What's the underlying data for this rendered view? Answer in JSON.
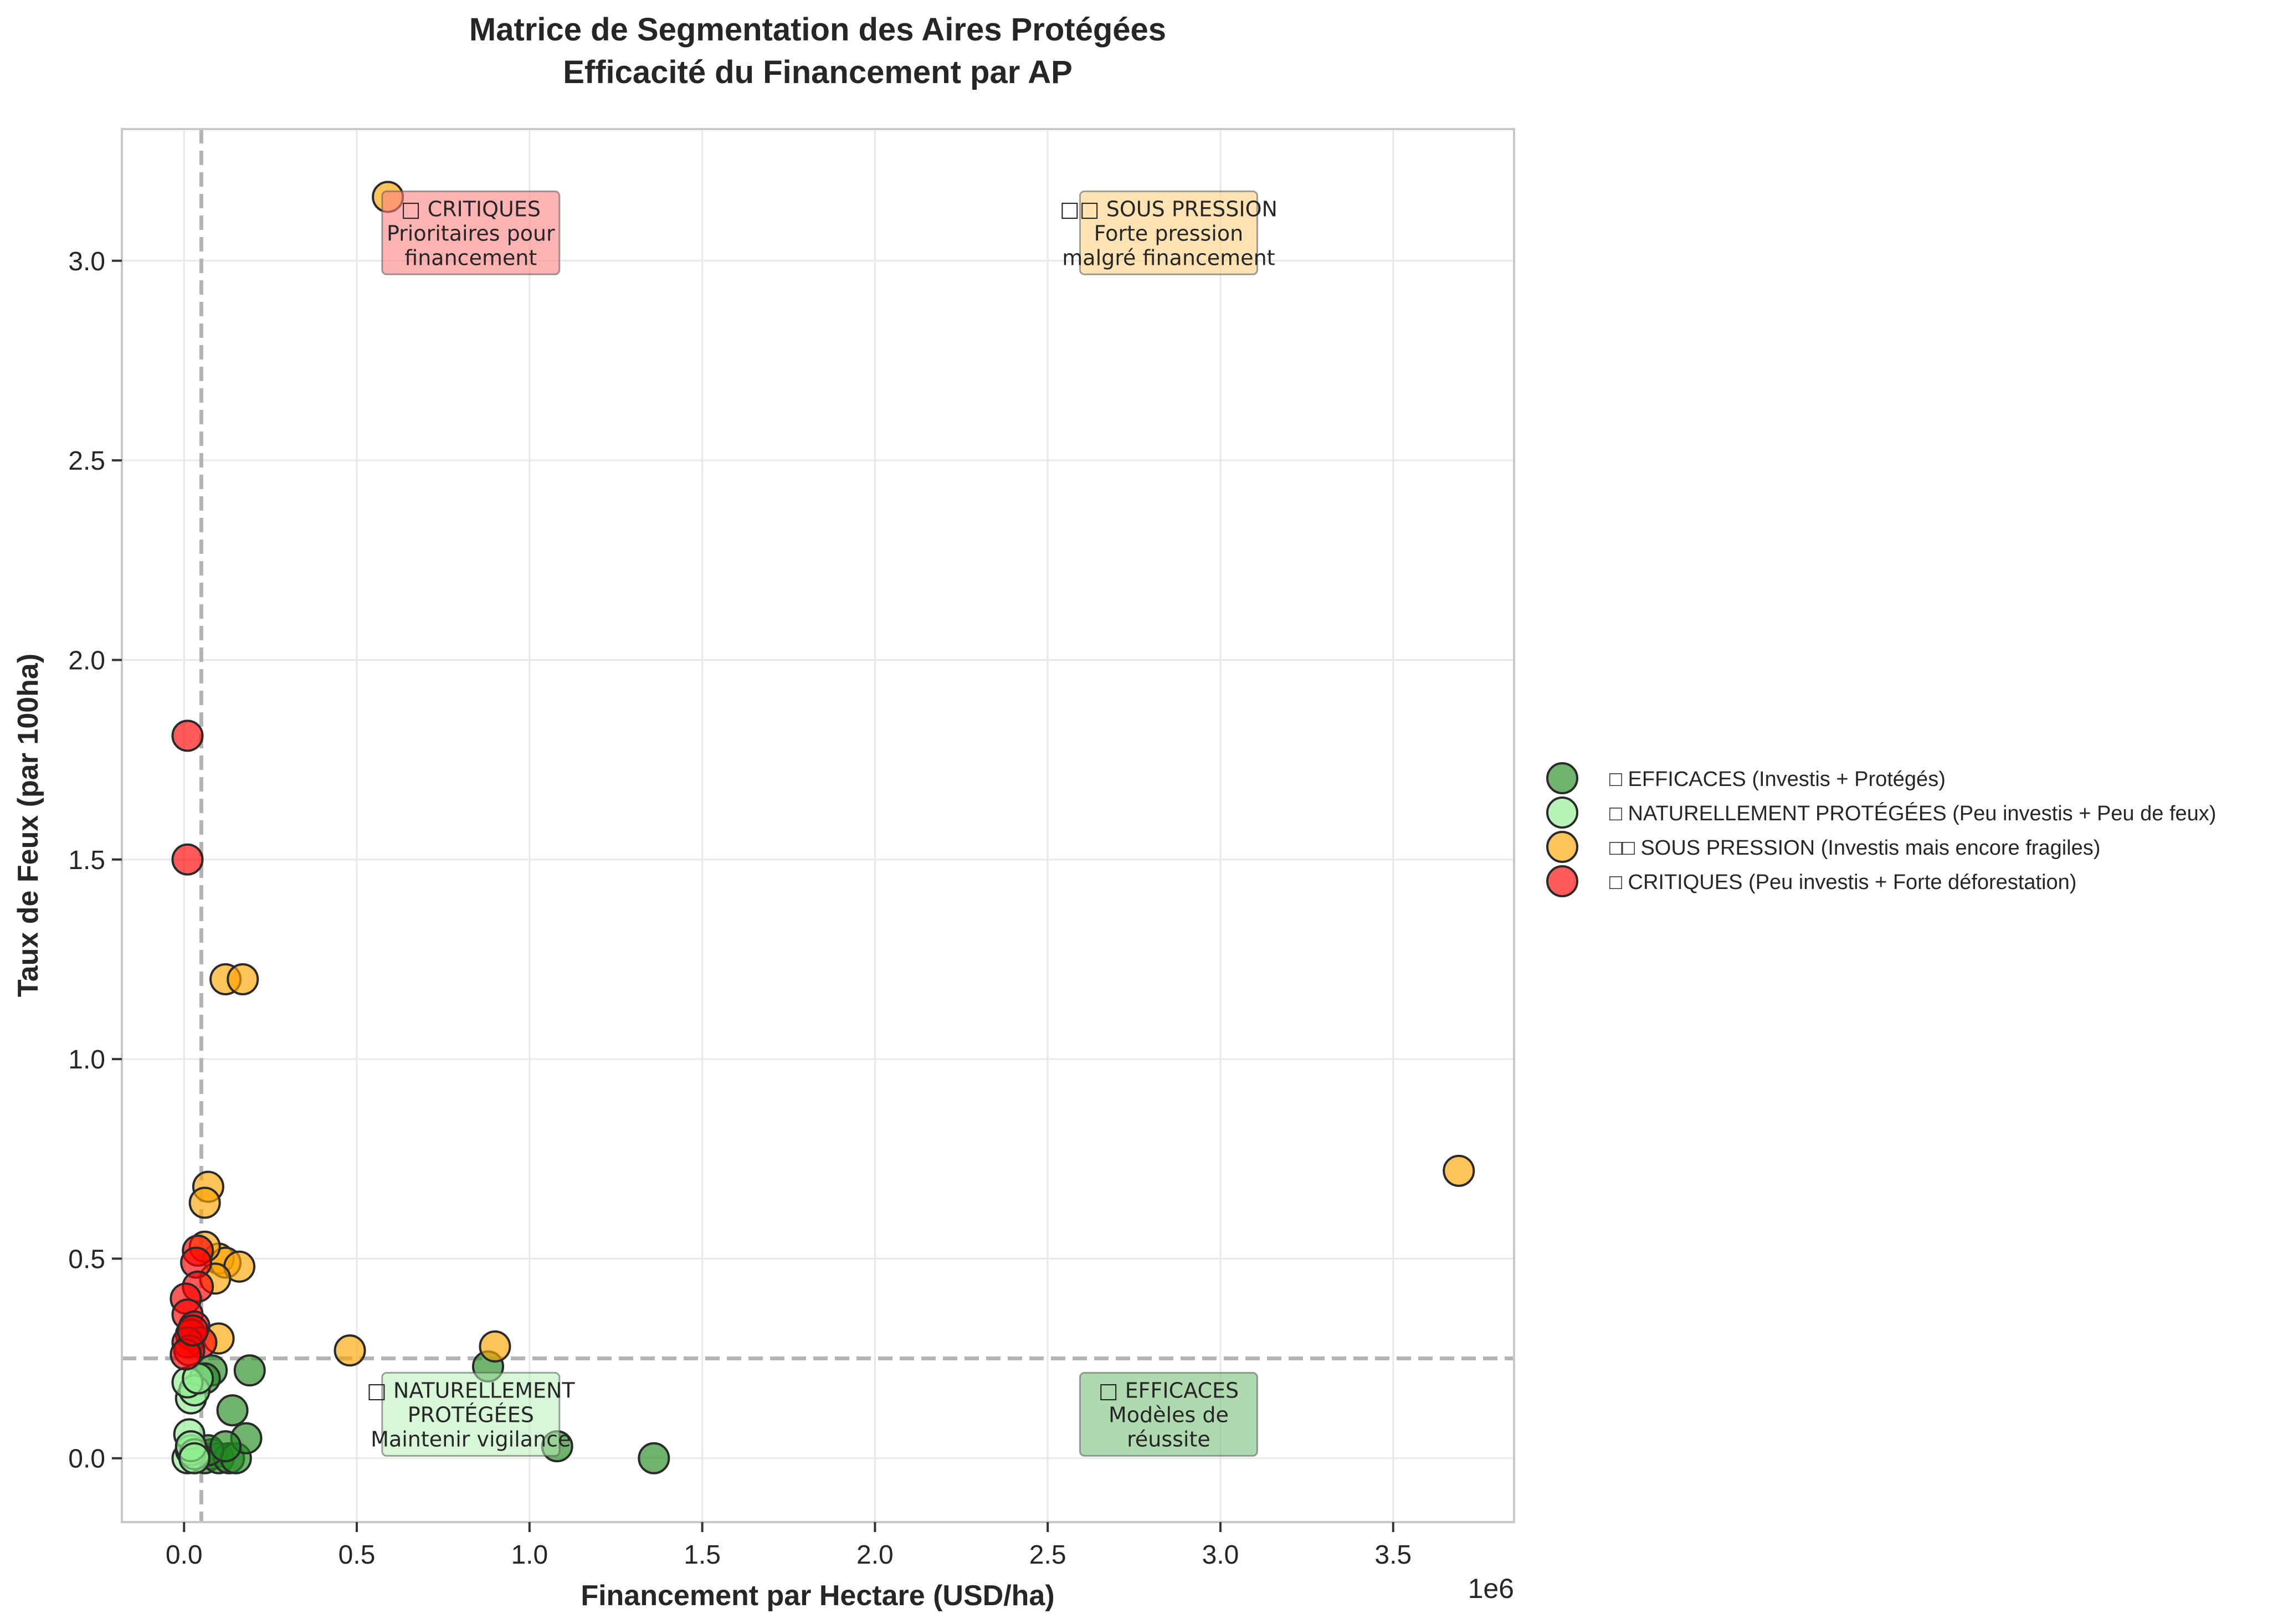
{
  "chart_data": {
    "type": "scatter",
    "title_line1": "Matrice de Segmentation des Aires Protégées",
    "title_line2": "Efficacité du Financement par AP",
    "xlabel": "Financement par Hectare (USD/ha)",
    "ylabel": "Taux de Feux (par 100ha)",
    "x_offset_label": "1e6",
    "xlim": [
      -0.18,
      3.85
    ],
    "ylim": [
      -0.16,
      3.33
    ],
    "x_ticks": [
      0.0,
      0.5,
      1.0,
      1.5,
      2.0,
      2.5,
      3.0,
      3.5
    ],
    "x_tick_labels": [
      "0.0",
      "0.5",
      "1.0",
      "1.5",
      "2.0",
      "2.5",
      "3.0",
      "3.5"
    ],
    "y_ticks": [
      0.0,
      0.5,
      1.0,
      1.5,
      2.0,
      2.5,
      3.0
    ],
    "y_tick_labels": [
      "0.0",
      "0.5",
      "1.0",
      "1.5",
      "2.0",
      "2.5",
      "3.0"
    ],
    "grid": true,
    "legend_position": "right, outside plot",
    "threshold_x": 0.05,
    "threshold_y": 0.25,
    "series": [
      {
        "name": "□ EFFICACES (Investis + Protégés)",
        "color": "#228b22",
        "points": [
          [
            0.06,
            0.0
          ],
          [
            0.08,
            0.01
          ],
          [
            0.1,
            0.0
          ],
          [
            0.13,
            0.0
          ],
          [
            0.15,
            0.0
          ],
          [
            0.18,
            0.05
          ],
          [
            0.14,
            0.12
          ],
          [
            0.08,
            0.22
          ],
          [
            0.06,
            0.2
          ],
          [
            0.19,
            0.22
          ],
          [
            0.88,
            0.23
          ],
          [
            1.08,
            0.03
          ],
          [
            1.36,
            0.0
          ],
          [
            0.07,
            0.02
          ],
          [
            0.12,
            0.03
          ]
        ]
      },
      {
        "name": "□ NATURELLEMENT PROTÉGÉES (Peu investis + Peu de feux)",
        "color": "#90ee90",
        "points": [
          [
            0.01,
            0.0
          ],
          [
            0.02,
            0.02
          ],
          [
            0.015,
            0.06
          ],
          [
            0.03,
            0.01
          ],
          [
            0.02,
            0.15
          ],
          [
            0.03,
            0.17
          ],
          [
            0.01,
            0.19
          ],
          [
            0.04,
            0.2
          ],
          [
            0.02,
            0.03
          ],
          [
            0.03,
            0.0
          ]
        ]
      },
      {
        "name": "□□  SOUS PRESSION (Investis mais encore fragiles)",
        "color": "#ffa500",
        "points": [
          [
            0.59,
            3.16
          ],
          [
            0.12,
            1.2
          ],
          [
            0.17,
            1.2
          ],
          [
            0.07,
            0.68
          ],
          [
            0.06,
            0.64
          ],
          [
            0.1,
            0.5
          ],
          [
            0.12,
            0.49
          ],
          [
            0.16,
            0.48
          ],
          [
            0.09,
            0.45
          ],
          [
            0.06,
            0.53
          ],
          [
            0.1,
            0.3
          ],
          [
            0.48,
            0.27
          ],
          [
            0.9,
            0.28
          ],
          [
            3.69,
            0.72
          ]
        ]
      },
      {
        "name": "□ CRITIQUES (Peu investis + Forte déforestation)",
        "color": "#ff0000",
        "points": [
          [
            0.01,
            1.81
          ],
          [
            0.01,
            1.5
          ],
          [
            0.04,
            0.52
          ],
          [
            0.035,
            0.49
          ],
          [
            0.04,
            0.43
          ],
          [
            0.005,
            0.4
          ],
          [
            0.01,
            0.36
          ],
          [
            0.03,
            0.33
          ],
          [
            0.02,
            0.31
          ],
          [
            0.05,
            0.29
          ],
          [
            0.01,
            0.29
          ],
          [
            0.015,
            0.27
          ],
          [
            0.005,
            0.26
          ],
          [
            0.025,
            0.32
          ]
        ]
      }
    ],
    "annotations": [
      {
        "lines": [
          "□ CRITIQUES",
          "Prioritaires pour",
          "financement"
        ],
        "x": 0.83,
        "y": 3.07,
        "fill": "#ff8080",
        "opacity": 0.6
      },
      {
        "lines": [
          "□□  SOUS PRESSION",
          "Forte pression",
          "malgré financement"
        ],
        "x": 2.85,
        "y": 3.07,
        "fill": "#ffd080",
        "opacity": 0.6
      },
      {
        "lines": [
          "□ NATURELLEMENT",
          "PROTÉGÉES",
          "Maintenir vigilance"
        ],
        "x": 0.83,
        "y": 0.11,
        "fill": "#b8f0b8",
        "opacity": 0.55
      },
      {
        "lines": [
          "□ EFFICACES",
          "Modèles de",
          "réussite"
        ],
        "x": 2.85,
        "y": 0.11,
        "fill": "#7ac07a",
        "opacity": 0.6
      }
    ]
  }
}
